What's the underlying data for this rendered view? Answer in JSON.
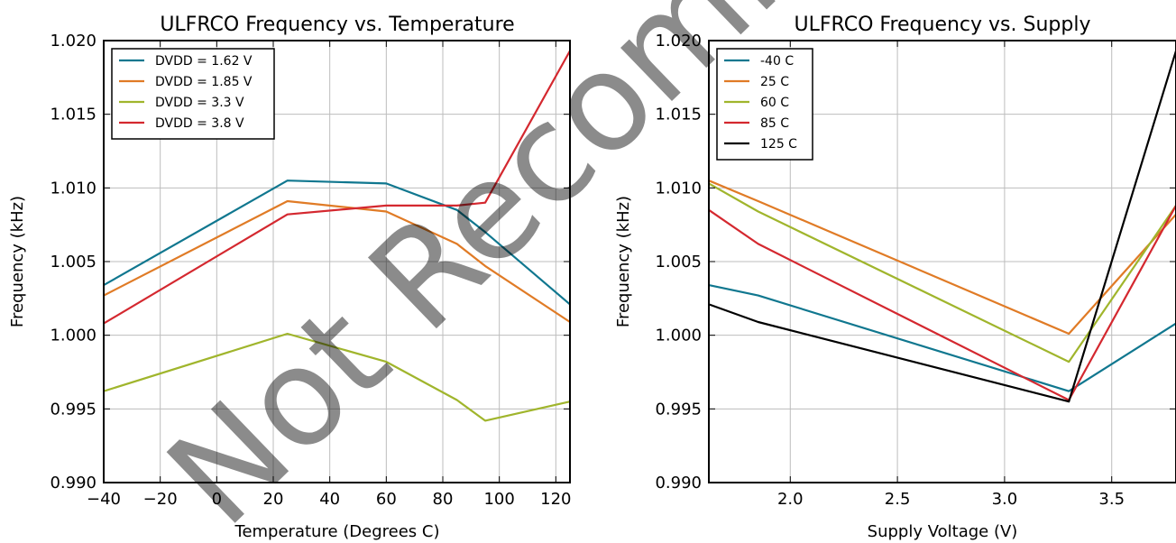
{
  "watermark": {
    "text": "Not Recommended For"
  },
  "chart_data": [
    {
      "type": "line",
      "title": "ULFRCO Frequency vs. Temperature",
      "xlabel": "Temperature (Degrees C)",
      "ylabel": "Frequency (kHz)",
      "xlim": [
        -40,
        125
      ],
      "ylim": [
        0.99,
        1.02
      ],
      "xticks": [
        -40,
        -20,
        0,
        20,
        40,
        60,
        80,
        100,
        120
      ],
      "yticks": [
        0.99,
        0.995,
        1.0,
        1.005,
        1.01,
        1.015,
        1.02
      ],
      "xtick_labels": [
        "−40",
        "−20",
        "0",
        "20",
        "40",
        "60",
        "80",
        "100",
        "120"
      ],
      "ytick_labels": [
        "0.990",
        "0.995",
        "1.000",
        "1.005",
        "1.010",
        "1.015",
        "1.020"
      ],
      "grid": true,
      "legend": "top-left",
      "series": [
        {
          "name": "DVDD = 1.62 V",
          "color": "#10778f",
          "x": [
            -40,
            25,
            60,
            85,
            95,
            125
          ],
          "y": [
            1.0034,
            1.0105,
            1.0103,
            1.0085,
            1.007,
            1.0021
          ]
        },
        {
          "name": "DVDD = 1.85 V",
          "color": "#e07b26",
          "x": [
            -40,
            25,
            60,
            85,
            95,
            125
          ],
          "y": [
            1.0027,
            1.0091,
            1.0084,
            1.0062,
            1.0047,
            1.0009
          ]
        },
        {
          "name": "DVDD = 3.3 V",
          "color": "#a0b52c",
          "x": [
            -40,
            25,
            60,
            85,
            95,
            125
          ],
          "y": [
            0.9962,
            1.0001,
            0.9982,
            0.9956,
            0.9942,
            0.9955
          ]
        },
        {
          "name": "DVDD = 3.8 V",
          "color": "#d4282f",
          "x": [
            -40,
            25,
            60,
            85,
            95,
            125
          ],
          "y": [
            1.0008,
            1.0082,
            1.0088,
            1.0088,
            1.009,
            1.0193
          ]
        }
      ]
    },
    {
      "type": "line",
      "title": "ULFRCO Frequency vs. Supply",
      "xlabel": "Supply Voltage (V)",
      "ylabel": "Frequency (kHz)",
      "xlim": [
        1.62,
        3.8
      ],
      "ylim": [
        0.99,
        1.02
      ],
      "xticks": [
        2.0,
        2.5,
        3.0,
        3.5
      ],
      "yticks": [
        0.99,
        0.995,
        1.0,
        1.005,
        1.01,
        1.015,
        1.02
      ],
      "xtick_labels": [
        "2.0",
        "2.5",
        "3.0",
        "3.5"
      ],
      "ytick_labels": [
        "0.990",
        "0.995",
        "1.000",
        "1.005",
        "1.010",
        "1.015",
        "1.020"
      ],
      "grid": true,
      "legend": "top-left",
      "series": [
        {
          "name": "-40 C",
          "color": "#10778f",
          "x": [
            1.62,
            1.85,
            3.3,
            3.8
          ],
          "y": [
            1.0034,
            1.0027,
            0.9962,
            1.0008
          ]
        },
        {
          "name": "25 C",
          "color": "#e07b26",
          "x": [
            1.62,
            1.85,
            3.3,
            3.8
          ],
          "y": [
            1.0105,
            1.0091,
            1.0001,
            1.0082
          ]
        },
        {
          "name": "60 C",
          "color": "#a0b52c",
          "x": [
            1.62,
            1.85,
            3.3,
            3.8
          ],
          "y": [
            1.0103,
            1.0084,
            0.9982,
            1.0088
          ]
        },
        {
          "name": "85 C",
          "color": "#d4282f",
          "x": [
            1.62,
            1.85,
            3.3,
            3.8
          ],
          "y": [
            1.0085,
            1.0062,
            0.9956,
            1.0088
          ]
        },
        {
          "name": "125 C",
          "color": "#000000",
          "x": [
            1.62,
            1.85,
            3.3,
            3.8
          ],
          "y": [
            1.0021,
            1.0009,
            0.9955,
            1.0193
          ]
        }
      ]
    }
  ]
}
